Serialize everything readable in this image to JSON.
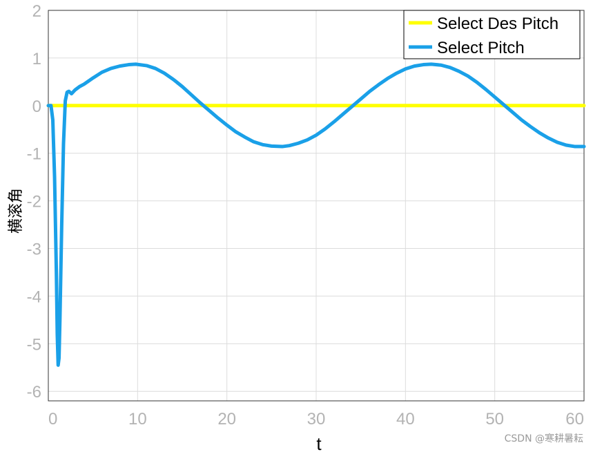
{
  "chart_data": {
    "type": "line",
    "title": "",
    "xlabel": "t",
    "ylabel": "横滚角",
    "xlim": [
      0,
      60
    ],
    "ylim": [
      -6.2,
      2
    ],
    "xticks": [
      0,
      10,
      20,
      30,
      40,
      50,
      60
    ],
    "yticks": [
      2,
      1,
      0,
      -1,
      -2,
      -3,
      -4,
      -5,
      -6
    ],
    "grid": true,
    "legend_position": "top-right",
    "series": [
      {
        "name": "Select Des Pitch",
        "color": "#ffff00",
        "x": [
          0,
          60
        ],
        "y": [
          0,
          0
        ]
      },
      {
        "name": "Select Pitch",
        "color": "#1aa0e8",
        "x": [
          0,
          0.3,
          0.5,
          0.7,
          0.9,
          1.0,
          1.1,
          1.2,
          1.3,
          1.5,
          1.7,
          1.9,
          2.1,
          2.3,
          2.6,
          3.0,
          3.5,
          4,
          5,
          6,
          7,
          8,
          9,
          9.8,
          11,
          12,
          13,
          14,
          15,
          16,
          17,
          18,
          19,
          20,
          21,
          22,
          23,
          24,
          25,
          26.2,
          27,
          28,
          29,
          30,
          31,
          32,
          33,
          34,
          35,
          36,
          37,
          38,
          39,
          40,
          41,
          42,
          42.9,
          44,
          45,
          46,
          47,
          48,
          49,
          50,
          51,
          52,
          53,
          54,
          55,
          56,
          57,
          58,
          59,
          60
        ],
        "y": [
          0,
          0,
          -0.3,
          -1.5,
          -3.5,
          -4.8,
          -5.45,
          -5.3,
          -4.5,
          -2.5,
          -0.8,
          0.1,
          0.28,
          0.3,
          0.25,
          0.33,
          0.4,
          0.45,
          0.58,
          0.7,
          0.78,
          0.83,
          0.86,
          0.87,
          0.84,
          0.78,
          0.68,
          0.55,
          0.4,
          0.23,
          0.06,
          -0.1,
          -0.26,
          -0.41,
          -0.55,
          -0.66,
          -0.76,
          -0.82,
          -0.85,
          -0.86,
          -0.84,
          -0.79,
          -0.72,
          -0.62,
          -0.49,
          -0.34,
          -0.18,
          -0.02,
          0.14,
          0.3,
          0.44,
          0.57,
          0.68,
          0.77,
          0.83,
          0.86,
          0.87,
          0.85,
          0.8,
          0.72,
          0.62,
          0.49,
          0.34,
          0.18,
          0.02,
          -0.14,
          -0.3,
          -0.44,
          -0.57,
          -0.68,
          -0.77,
          -0.83,
          -0.86,
          -0.86
        ]
      }
    ]
  },
  "watermark": "CSDN @寒耕暑耘"
}
